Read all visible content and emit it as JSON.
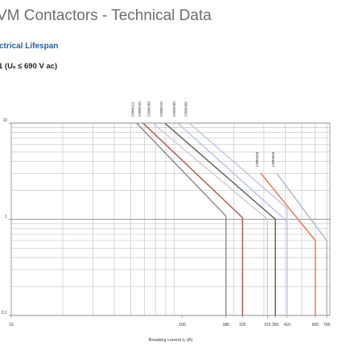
{
  "header": {
    "title": "VM Contactors - Technical Data",
    "section": "ctrical Lifespan",
    "subsection": "1 (Uₑ ≤ 690 V ac)"
  },
  "chart_data": {
    "type": "line",
    "x_label": "Breaking current Iₑ (A)",
    "log_x": true,
    "log_y": true,
    "grid": true,
    "xlim": [
      10,
      730
    ],
    "ylim": [
      0.1,
      10
    ],
    "xticks": [
      10,
      100,
      180,
      225,
      315,
      350,
      410,
      600,
      700
    ],
    "yticks": [
      0.1,
      1,
      10
    ],
    "xminor": [
      20,
      30,
      40,
      50,
      60,
      70,
      80,
      90,
      200,
      300,
      400,
      500,
      600,
      700
    ],
    "yminor": [
      0.2,
      0.3,
      0.4,
      0.5,
      0.6,
      0.7,
      0.8,
      0.9,
      2,
      3,
      4,
      5,
      6,
      7,
      8,
      9
    ],
    "series": [
      {
        "name": "CWM112",
        "color": "#8a8a8a",
        "x": [
          54,
          180,
          180
        ],
        "values": [
          10,
          1.08,
          0.1
        ]
      },
      {
        "name": "CWM150",
        "color": "#a5584a",
        "x": [
          59,
          225,
          225
        ],
        "values": [
          10,
          1.04,
          0.1
        ]
      },
      {
        "name": "CWM180",
        "color": "#cfc6e4",
        "x": [
          67,
          315,
          315
        ],
        "values": [
          10,
          1.0,
          0.1
        ]
      },
      {
        "name": "CWM215",
        "color": "#5a5a5a",
        "x": [
          79,
          350,
          350
        ],
        "values": [
          10,
          1.0,
          0.1
        ]
      },
      {
        "name": "CWM250",
        "color": "#b4c4e4",
        "x": [
          94,
          410,
          410
        ],
        "values": [
          10,
          0.95,
          0.1
        ]
      },
      {
        "name": "CWM300",
        "color": "#c9c0e2",
        "x": [
          110,
          410,
          410
        ],
        "values": [
          10,
          1.3,
          0.1
        ]
      },
      {
        "name": "CWM450",
        "color": "#e2764a",
        "x": [
          288,
          600,
          600
        ],
        "values": [
          3.0,
          0.6,
          0.1
        ]
      },
      {
        "name": "CWM560",
        "color": "#a8b6c6",
        "x": [
          357,
          700,
          700
        ],
        "values": [
          3.0,
          0.6,
          0.1
        ]
      }
    ]
  }
}
